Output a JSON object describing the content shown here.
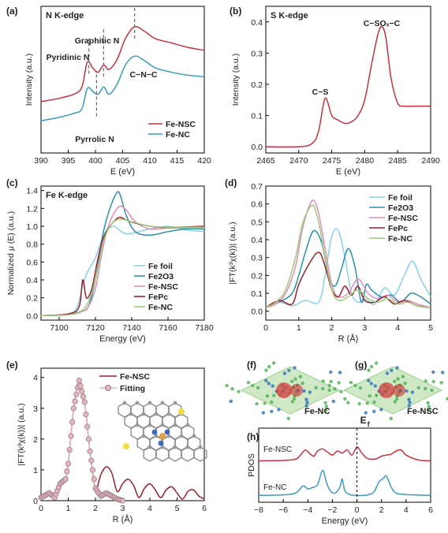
{
  "colors": {
    "red": "#c8313f",
    "blue": "#3a9bbd",
    "lightblue": "#86d2e8",
    "teal": "#2b8fb0",
    "pink": "#e08db8",
    "darkred": "#9c1f2d",
    "green": "#9ccb78",
    "gray": "#7a7a7a",
    "fitfill": "#e0b7c1",
    "fitstroke": "#a07c86"
  },
  "chart_data": [
    {
      "id": "a",
      "panel_label": "(a)",
      "type": "line",
      "title": "N K-edge",
      "xlabel": "E (eV)",
      "ylabel": "Intensity (a.u.)",
      "xlim": [
        390,
        420
      ],
      "ylim": [
        0,
        1
      ],
      "xticks": [
        "390",
        "395",
        "400",
        "405",
        "410",
        "415",
        "420"
      ],
      "legend_position": "bottom-right",
      "annotations": [
        "Pyridinic N",
        "Graphitic N",
        "C−N−C",
        "Pyrrolic N"
      ],
      "series": [
        {
          "name": "Fe-NSC",
          "color": "#c8313f",
          "x": [
            390,
            393,
            396,
            397.5,
            398.5,
            399.5,
            400.5,
            401.5,
            402.5,
            404,
            405.5,
            407.2,
            409,
            411,
            414,
            417,
            420
          ],
          "y": [
            0.35,
            0.37,
            0.4,
            0.45,
            0.62,
            0.58,
            0.55,
            0.6,
            0.57,
            0.64,
            0.78,
            0.86,
            0.83,
            0.78,
            0.75,
            0.72,
            0.7
          ]
        },
        {
          "name": "Fe-NC",
          "color": "#3a9bbd",
          "x": [
            390,
            393,
            396,
            397.5,
            398.5,
            399.5,
            400.5,
            401.5,
            402.5,
            404,
            405.5,
            407.2,
            409,
            411,
            414,
            417,
            420
          ],
          "y": [
            0.22,
            0.24,
            0.27,
            0.3,
            0.44,
            0.42,
            0.4,
            0.45,
            0.4,
            0.47,
            0.6,
            0.66,
            0.63,
            0.58,
            0.55,
            0.53,
            0.52
          ]
        }
      ]
    },
    {
      "id": "b",
      "panel_label": "(b)",
      "type": "line",
      "title": "S K-edge",
      "xlabel": "E (eV)",
      "ylabel": "Intensity (a.u.)",
      "xlim": [
        2465,
        2490
      ],
      "ylim": [
        -0.02,
        0.45
      ],
      "xticks": [
        "2465",
        "2470",
        "2475",
        "2480",
        "2485",
        "2490"
      ],
      "yticks": [
        "0.0",
        "0.1",
        "0.2",
        "0.3",
        "0.4"
      ],
      "annotations": [
        "C−S",
        "C−SOₓ−C"
      ],
      "series": [
        {
          "name": "",
          "color": "#c8313f",
          "x": [
            2465,
            2470,
            2472,
            2473,
            2474,
            2475,
            2476,
            2477,
            2478,
            2479,
            2480,
            2481,
            2482,
            2482.6,
            2483.2,
            2484,
            2485,
            2486,
            2488,
            2490
          ],
          "y": [
            0.0,
            0.0,
            0.01,
            0.05,
            0.155,
            0.1,
            0.085,
            0.075,
            0.08,
            0.1,
            0.15,
            0.26,
            0.36,
            0.385,
            0.35,
            0.22,
            0.14,
            0.13,
            0.13,
            0.13
          ]
        }
      ]
    },
    {
      "id": "c",
      "panel_label": "(c)",
      "type": "line",
      "title": "Fe K-edge",
      "xlabel": "Energy (eV)",
      "ylabel": "Normalized μ (E) (a.u.)",
      "xlim": [
        7090,
        7180
      ],
      "ylim": [
        -0.05,
        1.45
      ],
      "xticks": [
        "7100",
        "7120",
        "7140",
        "7160",
        "7180"
      ],
      "yticks": [
        "0.0",
        "0.2",
        "0.4",
        "0.6",
        "0.8",
        "1.0",
        "1.2",
        "1.4"
      ],
      "legend_position": "bottom-right",
      "series": [
        {
          "name": "Fe foil",
          "color": "#86d2e8",
          "x": [
            7090,
            7105,
            7110,
            7113,
            7116,
            7120,
            7125,
            7130,
            7135,
            7140,
            7150,
            7160,
            7170,
            7180
          ],
          "y": [
            0.0,
            0.02,
            0.1,
            0.35,
            0.5,
            0.65,
            0.92,
            1.0,
            0.93,
            0.92,
            0.97,
            1.0,
            0.96,
            0.94
          ]
        },
        {
          "name": "Fe2O3",
          "color": "#2b8fb0",
          "x": [
            7090,
            7105,
            7112,
            7116,
            7120,
            7124,
            7128,
            7132,
            7134,
            7137,
            7142,
            7150,
            7160,
            7170,
            7180
          ],
          "y": [
            0.0,
            0.01,
            0.05,
            0.1,
            0.4,
            0.9,
            1.2,
            1.38,
            1.33,
            1.12,
            0.94,
            0.9,
            0.94,
            0.97,
            0.97
          ]
        },
        {
          "name": "Fe-NSC",
          "color": "#e08db8",
          "x": [
            7090,
            7105,
            7112,
            7116,
            7120,
            7124,
            7128,
            7133,
            7137,
            7142,
            7150,
            7160,
            7170,
            7180
          ],
          "y": [
            0.0,
            0.01,
            0.04,
            0.1,
            0.3,
            0.75,
            1.05,
            1.22,
            1.18,
            1.05,
            0.97,
            0.98,
            0.98,
            0.98
          ]
        },
        {
          "name": "FePc",
          "color": "#9c1f2d",
          "x": [
            7090,
            7105,
            7111,
            7113,
            7115,
            7118,
            7121,
            7124,
            7128,
            7133,
            7138,
            7145,
            7155,
            7165,
            7180
          ],
          "y": [
            0.0,
            0.02,
            0.1,
            0.4,
            0.2,
            0.3,
            0.6,
            0.85,
            1.0,
            1.1,
            1.06,
            1.02,
            0.99,
            0.99,
            1.0
          ]
        },
        {
          "name": "Fe-NC",
          "color": "#9ccb78",
          "x": [
            7090,
            7105,
            7112,
            7116,
            7120,
            7124,
            7128,
            7133,
            7140,
            7150,
            7160,
            7170,
            7180
          ],
          "y": [
            0.0,
            0.01,
            0.05,
            0.15,
            0.4,
            0.8,
            1.0,
            1.08,
            1.05,
            1.0,
            0.99,
            0.99,
            0.99
          ]
        }
      ]
    },
    {
      "id": "d",
      "panel_label": "(d)",
      "type": "line",
      "xlabel": "R (Å)",
      "ylabel": "|FT(k³χ(k))| (a.u.)",
      "xlim": [
        0,
        5
      ],
      "ylim": [
        -0.05,
        0.7
      ],
      "xticks": [
        "0",
        "1",
        "2",
        "3",
        "4",
        "5"
      ],
      "yticks": [
        "0.0",
        "0.1",
        "0.2",
        "0.3",
        "0.4",
        "0.5",
        "0.6",
        "0.7"
      ],
      "legend_position": "top-right",
      "series": [
        {
          "name": "Fe foil",
          "color": "#86d2e8",
          "x": [
            0,
            0.4,
            0.8,
            1.2,
            1.6,
            1.8,
            2.0,
            2.2,
            2.4,
            2.6,
            2.8,
            3.0,
            3.3,
            3.6,
            3.9,
            4.2,
            4.45,
            4.7,
            5.0
          ],
          "y": [
            0.02,
            0.05,
            0.03,
            0.06,
            0.05,
            0.2,
            0.42,
            0.45,
            0.3,
            0.1,
            0.05,
            0.07,
            0.04,
            0.13,
            0.09,
            0.2,
            0.28,
            0.18,
            0.08
          ]
        },
        {
          "name": "Fe2O3",
          "color": "#2b8fb0",
          "x": [
            0,
            0.4,
            0.8,
            1.0,
            1.2,
            1.45,
            1.7,
            1.9,
            2.1,
            2.3,
            2.5,
            2.7,
            2.9,
            3.05,
            3.2,
            3.5,
            3.8,
            4.1,
            4.4,
            4.7,
            5.0
          ],
          "y": [
            0.02,
            0.05,
            0.1,
            0.2,
            0.33,
            0.45,
            0.38,
            0.2,
            0.14,
            0.24,
            0.35,
            0.25,
            0.05,
            0.15,
            0.12,
            0.08,
            0.09,
            0.05,
            0.1,
            0.08,
            0.04
          ]
        },
        {
          "name": "Fe-NSC",
          "color": "#e08db8",
          "x": [
            0,
            0.3,
            0.6,
            0.9,
            1.1,
            1.3,
            1.45,
            1.6,
            1.8,
            2.0,
            2.2,
            2.5,
            2.8,
            3.1,
            3.4,
            3.7,
            4.0,
            4.3,
            4.6,
            5.0
          ],
          "y": [
            0.02,
            0.04,
            0.1,
            0.25,
            0.45,
            0.58,
            0.62,
            0.55,
            0.35,
            0.15,
            0.08,
            0.1,
            0.18,
            0.1,
            0.07,
            0.09,
            0.05,
            0.06,
            0.04,
            0.02
          ]
        },
        {
          "name": "FePc",
          "color": "#9c1f2d",
          "x": [
            0,
            0.4,
            0.8,
            1.0,
            1.3,
            1.6,
            1.8,
            2.0,
            2.2,
            2.4,
            2.6,
            2.8,
            3.0,
            3.3,
            3.6,
            3.9,
            4.2,
            4.6,
            5.0
          ],
          "y": [
            0.02,
            0.06,
            0.04,
            0.15,
            0.26,
            0.33,
            0.25,
            0.12,
            0.08,
            0.14,
            0.09,
            0.14,
            0.06,
            0.05,
            0.08,
            0.04,
            0.06,
            0.03,
            0.02
          ]
        },
        {
          "name": "Fe-NC",
          "color": "#9ccb78",
          "x": [
            0,
            0.3,
            0.6,
            0.9,
            1.1,
            1.3,
            1.45,
            1.6,
            1.8,
            2.0,
            2.2,
            2.5,
            2.8,
            3.1,
            3.4,
            3.7,
            4.0,
            4.3,
            4.6,
            5.0
          ],
          "y": [
            0.02,
            0.05,
            0.12,
            0.3,
            0.48,
            0.57,
            0.59,
            0.5,
            0.3,
            0.12,
            0.06,
            0.08,
            0.12,
            0.07,
            0.05,
            0.07,
            0.04,
            0.05,
            0.03,
            0.02
          ]
        }
      ]
    },
    {
      "id": "e",
      "panel_label": "(e)",
      "type": "line",
      "xlabel": "R (Å)",
      "ylabel": "|FT(k³χ(k))| (a.u.)",
      "xlim": [
        0,
        6
      ],
      "ylim": [
        0,
        4.3
      ],
      "xticks": [
        "0",
        "1",
        "2",
        "3",
        "4",
        "5",
        "6"
      ],
      "yticks": [
        "0",
        "1",
        "2",
        "3",
        "4"
      ],
      "legend_position": "top-right",
      "series": [
        {
          "name": "Fe-NSC",
          "color": "#9c1f2d",
          "x": [
            0,
            0.3,
            0.5,
            0.7,
            0.9,
            1.0,
            1.2,
            1.4,
            1.6,
            1.8,
            2.0,
            2.2,
            2.4,
            2.6,
            2.8,
            3.0,
            3.2,
            3.4,
            3.6,
            3.8,
            4.0,
            4.2,
            4.4,
            4.6,
            4.8,
            5.0,
            5.2,
            5.4,
            5.6,
            5.8,
            6.0
          ],
          "y": [
            0.1,
            0.25,
            0.1,
            0.55,
            0.7,
            1.2,
            3.0,
            3.9,
            3.2,
            1.6,
            0.4,
            0.85,
            1.1,
            0.9,
            0.3,
            0.55,
            0.7,
            0.5,
            0.1,
            0.4,
            0.55,
            0.35,
            0.1,
            0.35,
            0.45,
            0.25,
            0.05,
            0.3,
            0.35,
            0.15,
            0.05
          ]
        },
        {
          "name": "Fitting",
          "color": "#e0b7c1",
          "x": [
            0,
            0.3,
            0.5,
            0.7,
            0.9,
            1.0,
            1.2,
            1.4,
            1.6,
            1.8,
            2.0,
            2.2,
            2.4,
            2.6,
            2.8,
            3.0
          ],
          "y": [
            0.1,
            0.25,
            0.1,
            0.55,
            0.7,
            1.2,
            3.0,
            3.9,
            3.2,
            1.6,
            0.4,
            0.15,
            0.25,
            0.15,
            0.05,
            0.0
          ]
        }
      ]
    },
    {
      "id": "h",
      "panel_label": "(h)",
      "type": "line",
      "xlabel": "Energy (eV)",
      "ylabel": "PDOS",
      "xlim": [
        -8,
        6
      ],
      "xticks": [
        "−8",
        "−6",
        "−4",
        "−2",
        "0",
        "2",
        "4",
        "6"
      ],
      "fermi_label": "E",
      "fermi_subscript": "f",
      "series": [
        {
          "name": "Fe-NSC",
          "color": "#c8313f",
          "x": [
            -8,
            -6,
            -5,
            -4.6,
            -4.2,
            -3.8,
            -3.5,
            -3.2,
            -2.8,
            -2.4,
            -2.0,
            -1.6,
            -1.2,
            -0.8,
            -0.4,
            0,
            0.4,
            0.8,
            1.2,
            1.6,
            2.0,
            2.4,
            2.8,
            3.2,
            3.6,
            4.0,
            5.0,
            6.0
          ],
          "y": [
            0.02,
            0.04,
            0.1,
            0.3,
            0.55,
            0.35,
            0.25,
            0.5,
            0.6,
            0.45,
            0.3,
            0.5,
            0.4,
            0.55,
            0.3,
            0.7,
            0.4,
            0.15,
            0.1,
            0.12,
            0.25,
            0.3,
            0.35,
            0.5,
            0.55,
            0.3,
            0.06,
            0.02
          ]
        },
        {
          "name": "Fe-NC",
          "color": "#3a9bbd",
          "x": [
            -8,
            -6,
            -5,
            -4.4,
            -4.0,
            -3.6,
            -3.2,
            -2.8,
            -2.5,
            -2.2,
            -1.8,
            -1.4,
            -1.2,
            -1.0,
            -0.6,
            0,
            0.6,
            1.0,
            1.4,
            1.8,
            2.1,
            2.4,
            2.8,
            3.2,
            4.0,
            5.0,
            6.0
          ],
          "y": [
            0.02,
            0.04,
            0.1,
            0.35,
            0.25,
            0.3,
            0.4,
            0.9,
            0.5,
            0.2,
            0.1,
            0.3,
            0.6,
            0.2,
            0.05,
            0.02,
            0.02,
            0.05,
            0.15,
            0.5,
            0.6,
            0.7,
            0.3,
            0.1,
            0.05,
            0.03,
            0.02
          ]
        }
      ]
    }
  ],
  "panels": {
    "f": {
      "label": "(f)",
      "caption": "Fe-NC"
    },
    "g": {
      "label": "(g)",
      "caption": "Fe-NSC"
    }
  }
}
